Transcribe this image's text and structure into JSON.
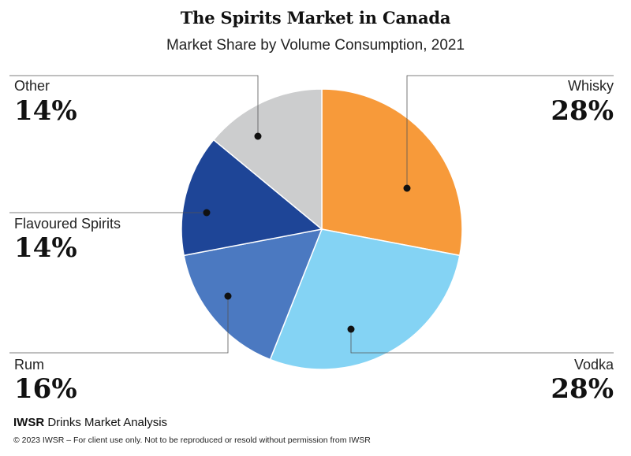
{
  "title": "The Spirits Market in Canada",
  "subtitle": "Market Share by Volume Consumption, 2021",
  "chart_data": {
    "type": "pie",
    "title": "The Spirits Market in Canada",
    "subtitle": "Market Share by Volume Consumption, 2021",
    "slices": [
      {
        "name": "Whisky",
        "value": 28,
        "label": "28%",
        "color": "#f79a3a"
      },
      {
        "name": "Vodka",
        "value": 28,
        "label": "28%",
        "color": "#84d3f4"
      },
      {
        "name": "Rum",
        "value": 16,
        "label": "16%",
        "color": "#4b79c1"
      },
      {
        "name": "Flavoured Spirits",
        "value": 14,
        "label": "14%",
        "color": "#1e4597"
      },
      {
        "name": "Other",
        "value": 14,
        "label": "14%",
        "color": "#cccdce"
      }
    ]
  },
  "footer": {
    "brand_bold": "IWSR",
    "brand_rest": " Drinks Market Analysis",
    "copyright": "© 2023 IWSR – For client use only. Not to be reproduced or resold without permission from IWSR"
  }
}
